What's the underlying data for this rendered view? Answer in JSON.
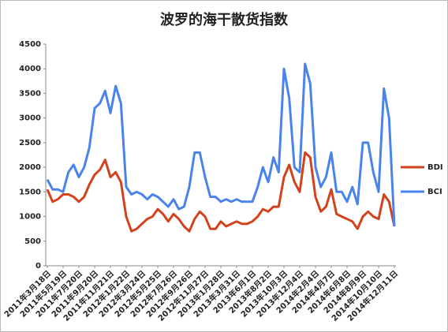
{
  "chart_data": {
    "type": "line",
    "title": "波罗的海干散货指数",
    "categories": [
      "2011年3月18日",
      null,
      null,
      "2011年5月19日",
      null,
      null,
      "2011年7月20日",
      null,
      null,
      "2011年9月20日",
      null,
      null,
      "2011年11月21日",
      null,
      null,
      "2012年1月22日",
      null,
      null,
      "2012年3月24日",
      null,
      null,
      "2012年5月25日",
      null,
      null,
      "2012年7月26日",
      null,
      null,
      "2012年9月26日",
      null,
      null,
      "2012年11月27日",
      null,
      null,
      "2013年1月28日",
      null,
      null,
      "2013年3月31日",
      null,
      null,
      "2013年6月1日",
      null,
      null,
      "2013年8月2日",
      null,
      null,
      "2013年10月3日",
      null,
      null,
      "2013年12月4日",
      null,
      null,
      "2014年2月4日",
      null,
      null,
      "2014年4月7日",
      null,
      null,
      "2014年6月8日",
      null,
      null,
      "2014年8月9日",
      null,
      null,
      "2014年10月10日",
      null,
      null,
      "2014年12月11日"
    ],
    "series": [
      {
        "name": "BDI",
        "color": "#d2421c",
        "values": [
          1550,
          1300,
          1350,
          1450,
          1450,
          1400,
          1300,
          1400,
          1650,
          1850,
          1950,
          2150,
          1800,
          1900,
          1700,
          1000,
          700,
          750,
          850,
          950,
          1000,
          1150,
          1050,
          900,
          1050,
          950,
          800,
          700,
          950,
          1100,
          1000,
          750,
          750,
          900,
          800,
          850,
          900,
          850,
          850,
          900,
          1000,
          1150,
          1100,
          1200,
          1200,
          1800,
          2050,
          1700,
          1500,
          2300,
          2200,
          1400,
          1100,
          1200,
          1550,
          1050,
          1000,
          950,
          900,
          750,
          1000,
          1100,
          1000,
          950,
          1450,
          1300,
          800
        ]
      },
      {
        "name": "BCI",
        "color": "#4a83ea",
        "values": [
          1750,
          1550,
          1550,
          1500,
          1900,
          2050,
          1800,
          2000,
          2400,
          3200,
          3300,
          3550,
          3100,
          3650,
          3300,
          1600,
          1450,
          1500,
          1450,
          1350,
          1450,
          1400,
          1300,
          1200,
          1350,
          1150,
          1200,
          1600,
          2300,
          2300,
          1800,
          1400,
          1400,
          1300,
          1350,
          1300,
          1350,
          1300,
          1300,
          1300,
          1600,
          2000,
          1700,
          2200,
          1900,
          4000,
          3400,
          2000,
          1900,
          4100,
          3700,
          2000,
          1600,
          1800,
          2300,
          1500,
          1500,
          1300,
          1600,
          1250,
          2500,
          2500,
          1900,
          1500,
          3600,
          3000,
          800
        ]
      }
    ],
    "ylim": [
      0,
      4500
    ],
    "yticks": [
      0,
      500,
      1000,
      1500,
      2000,
      2500,
      3000,
      3500,
      4000,
      4500
    ],
    "grid": false
  }
}
